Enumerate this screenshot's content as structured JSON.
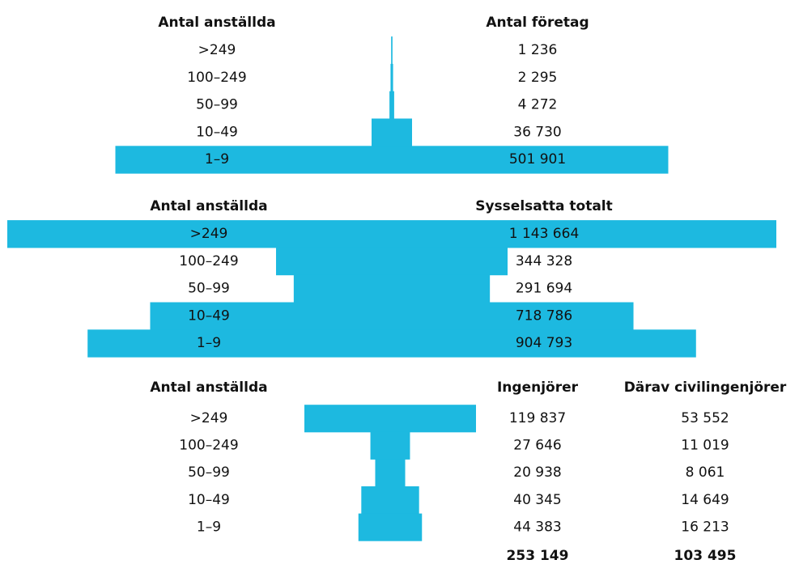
{
  "chart_data": [
    {
      "type": "bar",
      "category_title": "Antal anställda",
      "categories": [
        ">249",
        "100–249",
        "50–99",
        "10–49",
        "1–9"
      ],
      "series": [
        {
          "name": "Antal företag",
          "color": "#1db9e0",
          "values": [
            1236,
            2295,
            4272,
            36730,
            501901
          ],
          "value_labels": [
            "1 236",
            "2 295",
            "4 272",
            "36 730",
            "501 901"
          ]
        }
      ]
    },
    {
      "type": "bar",
      "category_title": "Antal anställda",
      "categories": [
        ">249",
        "100–249",
        "50–99",
        "10–49",
        "1–9"
      ],
      "series": [
        {
          "name": "Sysselsatta totalt",
          "color": "#1db9e0",
          "values": [
            1143664,
            344328,
            291694,
            718786,
            904793
          ],
          "value_labels": [
            "1 143 664",
            "344 328",
            "291 694",
            "718 786",
            "904 793"
          ]
        }
      ]
    },
    {
      "type": "bar",
      "category_title": "Antal anställda",
      "categories": [
        ">249",
        "100–249",
        "50–99",
        "10–49",
        "1–9"
      ],
      "series": [
        {
          "name": "Ingenjörer",
          "color": "#1db9e0",
          "values": [
            119837,
            27646,
            20938,
            40345,
            44383
          ],
          "value_labels": [
            "119 837",
            "27 646",
            "20 938",
            "40 345",
            "44 383"
          ],
          "total": 253149,
          "total_label": "253 149"
        },
        {
          "name": "Därav civilingenjörer",
          "values": [
            53552,
            11019,
            8061,
            14649,
            16213
          ],
          "value_labels": [
            "53 552",
            "11 019",
            "8 061",
            "14 649",
            "16 213"
          ],
          "total": 103495,
          "total_label": "103 495"
        }
      ]
    }
  ]
}
